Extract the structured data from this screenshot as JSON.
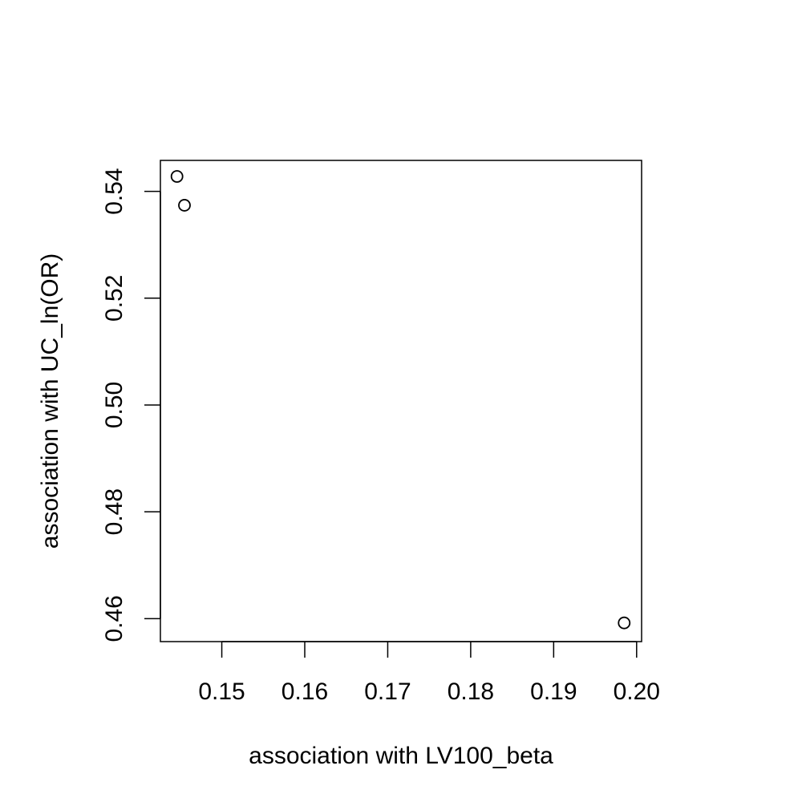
{
  "chart_data": {
    "type": "scatter",
    "title": "",
    "xlabel": "association with LV100_beta",
    "ylabel": "association with UC_ln(OR)",
    "xlim": [
      0.1426,
      0.2006
    ],
    "ylim": [
      0.4557,
      0.5458
    ],
    "x_ticks": [
      {
        "value": 0.15,
        "label": "0.15"
      },
      {
        "value": 0.16,
        "label": "0.16"
      },
      {
        "value": 0.17,
        "label": "0.17"
      },
      {
        "value": 0.18,
        "label": "0.18"
      },
      {
        "value": 0.19,
        "label": "0.19"
      },
      {
        "value": 0.2,
        "label": "0.20"
      }
    ],
    "y_ticks": [
      {
        "value": 0.46,
        "label": "0.46"
      },
      {
        "value": 0.48,
        "label": "0.48"
      },
      {
        "value": 0.5,
        "label": "0.50"
      },
      {
        "value": 0.52,
        "label": "0.52"
      },
      {
        "value": 0.54,
        "label": "0.54"
      }
    ],
    "points": [
      {
        "x": 0.1446,
        "y": 0.5428
      },
      {
        "x": 0.1455,
        "y": 0.5374
      },
      {
        "x": 0.1985,
        "y": 0.4592
      }
    ],
    "marker": "open-circle",
    "grid": false,
    "colors": {
      "marker": "#000000",
      "axis": "#000000"
    }
  }
}
